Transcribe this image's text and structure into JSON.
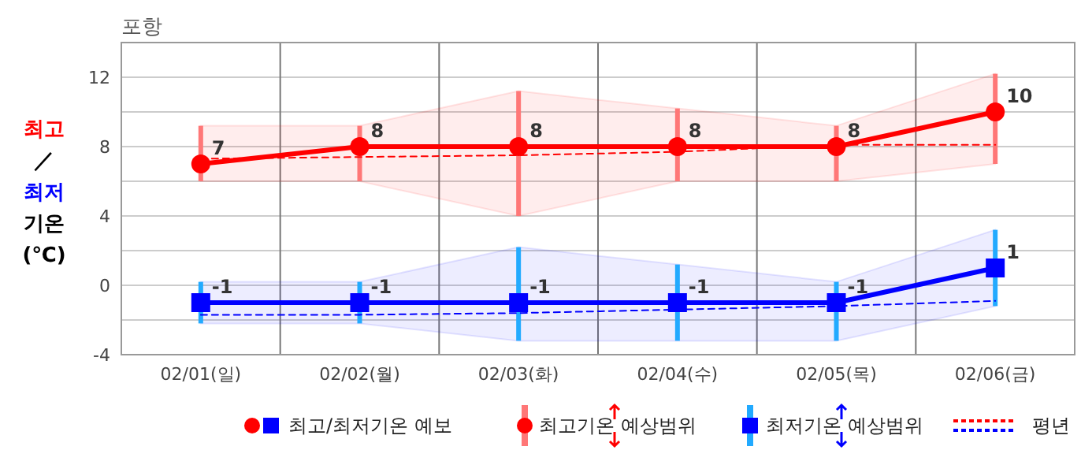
{
  "chart_data": {
    "type": "line",
    "title": "포항",
    "ylabel": "최고 ／ 최저 기온 (℃)",
    "categories": [
      "02/01(일)",
      "02/02(월)",
      "02/03(화)",
      "02/04(수)",
      "02/05(목)",
      "02/06(금)"
    ],
    "series": [
      {
        "color": "#ff0000",
        "marker": "circle",
        "values": [
          7,
          8,
          8,
          8,
          8,
          10
        ],
        "value_labels": [
          "7",
          "8",
          "8",
          "8",
          "8",
          "10"
        ],
        "errors": [
          [
            6,
            9.2
          ],
          [
            6,
            9.2
          ],
          [
            4,
            11.2
          ],
          [
            6,
            10.2
          ],
          [
            6,
            9.2
          ],
          [
            7,
            12.2
          ]
        ],
        "lower": [
          6,
          6,
          4,
          6,
          6,
          7
        ],
        "upper": [
          9.2,
          9.2,
          11.2,
          10.2,
          9.2,
          12.2
        ]
      },
      {
        "color": "#0000ff",
        "marker": "square",
        "values": [
          -1,
          -1,
          -1,
          -1,
          -1,
          1
        ],
        "value_labels": [
          "-1",
          "-1",
          "-1",
          "-1",
          "-1",
          "1"
        ],
        "errors": [
          [
            -2.2,
            0.2
          ],
          [
            -2.2,
            0.2
          ],
          [
            -3.2,
            2.2
          ],
          [
            -3.2,
            1.2
          ],
          [
            -3.2,
            0.2
          ],
          [
            -1.2,
            3.2
          ]
        ],
        "lower": [
          -2.2,
          -2.2,
          -3.2,
          -3.2,
          -3.2,
          -1.2
        ],
        "upper": [
          0.2,
          0.2,
          2.2,
          1.2,
          0.2,
          3.2
        ]
      },
      {
        "color": "#ff0000",
        "marker": "none",
        "line_style": "dashed",
        "values": [
          7.3,
          7.4,
          7.5,
          7.7,
          8.1,
          8.1
        ]
      },
      {
        "color": "#0000ff",
        "marker": "none",
        "line_style": "dashed",
        "values": [
          -1.7,
          -1.7,
          -1.6,
          -1.4,
          -1.2,
          -0.9
        ]
      }
    ],
    "ylim": [
      -4,
      14
    ],
    "yticks": [
      -4,
      {
        "value": -2,
        "label": null
      },
      0,
      {
        "value": 2,
        "label": null
      },
      4,
      {
        "value": 6,
        "label": null
      },
      8,
      {
        "value": 10,
        "label": null
      },
      12
    ],
    "grid": true,
    "annotations": [
      "최고/최저기온 예보",
      "최고기온 예상범위",
      "최저기온 예상범위",
      "평년"
    ]
  }
}
